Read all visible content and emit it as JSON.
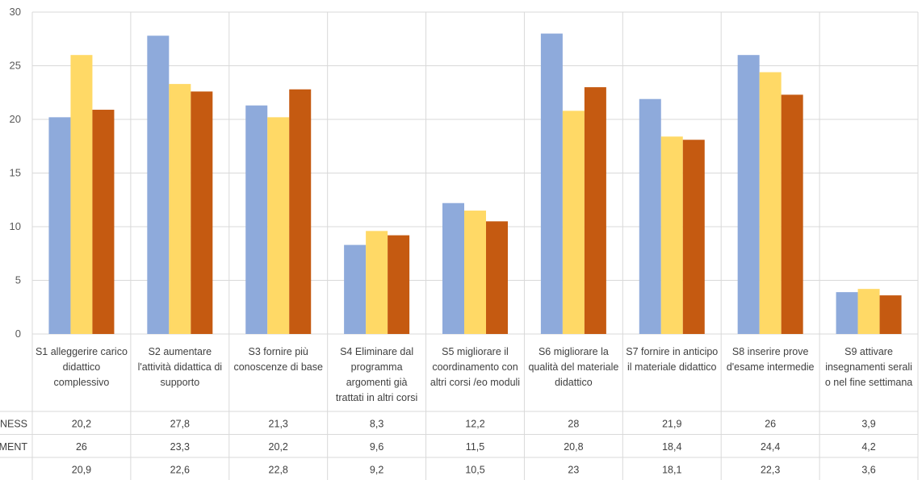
{
  "chart_data": {
    "type": "bar",
    "ylim": [
      0,
      30
    ],
    "yticks": [
      "0",
      "5",
      "10",
      "15",
      "20",
      "25",
      "30"
    ],
    "categories": [
      [
        "S1 alleggerire carico",
        "didattico",
        "complessivo"
      ],
      [
        "S2 aumentare",
        "l'attività didattica di",
        "supporto"
      ],
      [
        "S3 fornire più",
        "conoscenze di base"
      ],
      [
        "S4 Eliminare dal",
        "programma",
        "argomenti già",
        "trattati in altri corsi"
      ],
      [
        "S5 migliorare il",
        "coordinamento con",
        "altri corsi /eo moduli"
      ],
      [
        "S6 migliorare la",
        "qualità del materiale",
        "didattico"
      ],
      [
        "S7 fornire in anticipo",
        "il materiale didattico"
      ],
      [
        "S8 inserire prove",
        "d'esame intermedie"
      ],
      [
        "S9 attivare",
        "insegnamenti serali",
        "o nel fine settimana"
      ]
    ],
    "series": [
      {
        "name": "NESS",
        "color": "#8eaadb",
        "values": [
          20.2,
          27.8,
          21.3,
          8.3,
          12.2,
          28,
          21.9,
          26,
          3.9
        ],
        "labels": [
          "20,2",
          "27,8",
          "21,3",
          "8,3",
          "12,2",
          "28",
          "21,9",
          "26",
          "3,9"
        ]
      },
      {
        "name": "MENT",
        "color": "#ffd966",
        "values": [
          26,
          23.3,
          20.2,
          9.6,
          11.5,
          20.8,
          18.4,
          24.4,
          4.2
        ],
        "labels": [
          "26",
          "23,3",
          "20,2",
          "9,6",
          "11,5",
          "20,8",
          "18,4",
          "24,4",
          "4,2"
        ]
      },
      {
        "color": "#c55a11",
        "values": [
          20.9,
          22.6,
          22.8,
          9.2,
          10.5,
          23,
          18.1,
          22.3,
          3.6
        ],
        "labels": [
          "20,9",
          "22,6",
          "22,8",
          "9,2",
          "10,5",
          "23",
          "18,1",
          "22,3",
          "3,6"
        ]
      }
    ]
  }
}
